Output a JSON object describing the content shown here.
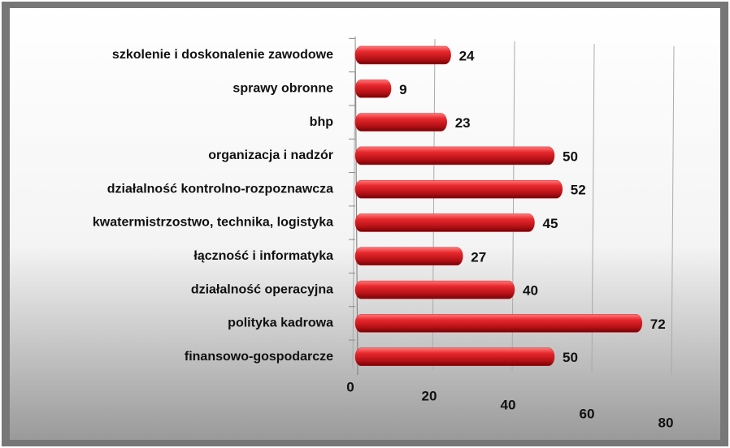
{
  "chart_data": {
    "type": "bar",
    "orientation": "horizontal",
    "categories": [
      "szkolenie i doskonalenie zawodowe",
      "sprawy obronne",
      "bhp",
      "organizacja i nadzór",
      "działalność kontrolno-rozpoznawcza",
      "kwatermistrzostwo, technika, logistyka",
      "łączność i informatyka",
      "działalność operacyjna",
      "polityka kadrowa",
      "finansowo-gospodarcze"
    ],
    "values": [
      24,
      9,
      23,
      50,
      52,
      45,
      27,
      40,
      72,
      50
    ],
    "color": "#d71920",
    "xlim": [
      0,
      80
    ],
    "xticks": [
      0,
      20,
      40,
      60,
      80
    ],
    "grid": true
  }
}
